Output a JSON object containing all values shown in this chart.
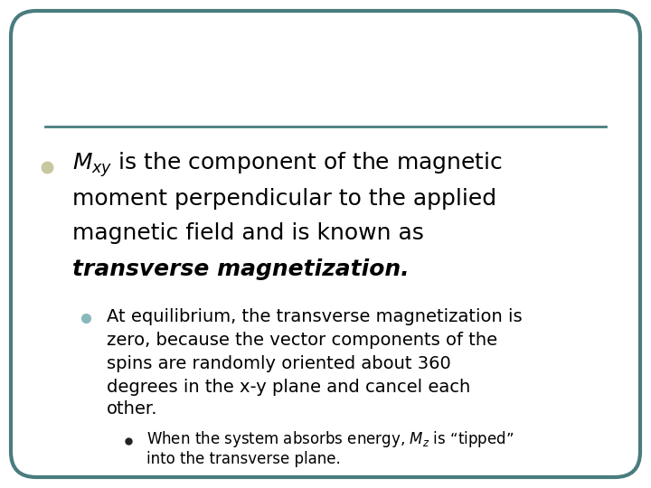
{
  "background_color": "#ffffff",
  "border_color": "#4a7c7e",
  "border_linewidth": 3,
  "divider_color": "#4a7c7e",
  "bullet1_color": "#c8c8a0",
  "bullet2_color": "#88b8ba",
  "bullet3_color": "#222222",
  "main_text_lines": [
    {
      "text": "$\\mathit{M}_{xy}$ is the component of the magnetic",
      "bold": false,
      "italic": false,
      "size": 18
    },
    {
      "text": "moment perpendicular to the applied",
      "bold": false,
      "italic": false,
      "size": 18
    },
    {
      "text": "magnetic field and is known as",
      "bold": false,
      "italic": false,
      "size": 18
    },
    {
      "text": "transverse magnetization.",
      "bold": true,
      "italic": true,
      "size": 18
    }
  ],
  "sub_text_lines": [
    {
      "text": "At equilibrium, the transverse magnetization is",
      "size": 14
    },
    {
      "text": "zero, because the vector components of the",
      "size": 14
    },
    {
      "text": "spins are randomly oriented about 360",
      "size": 14
    },
    {
      "text": "degrees in the x-y plane and cancel each",
      "size": 14
    },
    {
      "text": "other.",
      "size": 14
    }
  ],
  "sub_sub_text_lines": [
    {
      "text": "When the system absorbs energy, $M_z$ is “tipped”",
      "size": 12
    },
    {
      "text": "into the transverse plane.",
      "size": 12
    }
  ]
}
